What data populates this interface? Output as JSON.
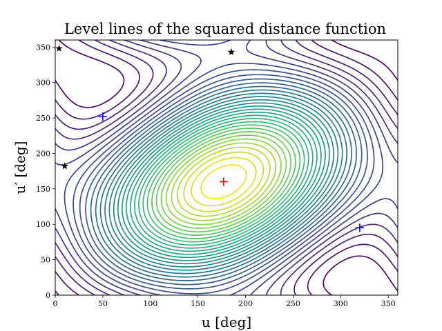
{
  "chart_data": {
    "type": "contour",
    "title": "Level lines of the squared distance function",
    "xlabel": "u [deg]",
    "ylabel": "u′ [deg]",
    "xlim": [
      0,
      360
    ],
    "ylim": [
      0,
      360
    ],
    "xticks": [
      0,
      50,
      100,
      150,
      200,
      250,
      300,
      350
    ],
    "yticks": [
      0,
      50,
      100,
      150,
      200,
      250,
      300,
      350
    ],
    "colormap": "viridis",
    "grid": false,
    "markers": [
      {
        "kind": "plus",
        "color": "#ff0000",
        "x": 177,
        "y": 160
      },
      {
        "kind": "plus",
        "color": "#0000ff",
        "x": 50,
        "y": 252
      },
      {
        "kind": "plus",
        "color": "#0000ff",
        "x": 320,
        "y": 95
      },
      {
        "kind": "star",
        "color": "#000000",
        "x": 4,
        "y": 348
      },
      {
        "kind": "star",
        "color": "#000000",
        "x": 185,
        "y": 343
      },
      {
        "kind": "star",
        "color": "#000000",
        "x": 10,
        "y": 182
      }
    ]
  }
}
